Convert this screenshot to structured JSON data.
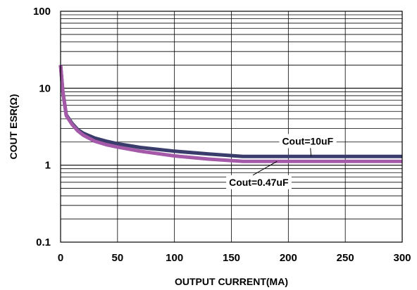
{
  "chart_data": {
    "type": "line",
    "title": "",
    "xlabel": "OUTPUT CURRENT(MA)",
    "ylabel": "COUT ESR(Ω)",
    "x_scale": "linear",
    "y_scale": "log",
    "xlim": [
      0,
      300
    ],
    "ylim": [
      0.1,
      100
    ],
    "x_ticks": [
      0,
      50,
      100,
      150,
      200,
      250,
      300
    ],
    "x_tick_labels": [
      "0",
      "50",
      "100",
      "150",
      "200",
      "250",
      "300"
    ],
    "y_ticks": [
      0.1,
      1,
      10,
      100
    ],
    "y_tick_labels": [
      "0.1",
      "1",
      "10",
      "100"
    ],
    "grid": true,
    "legend": "none",
    "series": [
      {
        "name": "Cout=10uF",
        "color": "#3a3d6b",
        "x": [
          0,
          2,
          5,
          10,
          15,
          20,
          30,
          40,
          50,
          70,
          100,
          130,
          160,
          200,
          250,
          300
        ],
        "y": [
          20,
          9,
          4.5,
          3.5,
          2.9,
          2.6,
          2.25,
          2.05,
          1.9,
          1.7,
          1.52,
          1.4,
          1.3,
          1.3,
          1.3,
          1.3
        ]
      },
      {
        "name": "Cout=0.47uF",
        "color": "#a45aa8",
        "x": [
          0,
          2,
          5,
          10,
          15,
          20,
          30,
          40,
          50,
          70,
          100,
          130,
          160,
          200,
          250,
          300
        ],
        "y": [
          20,
          9,
          4.4,
          3.4,
          2.8,
          2.45,
          2.05,
          1.85,
          1.72,
          1.52,
          1.32,
          1.2,
          1.12,
          1.12,
          1.12,
          1.12
        ]
      }
    ],
    "annotations": [
      {
        "text": "Cout=10uF",
        "series": 0,
        "x": 217,
        "y": 2.0
      },
      {
        "text": "Cout=0.47uF",
        "series": 1,
        "x": 174,
        "y": 0.585
      }
    ]
  }
}
